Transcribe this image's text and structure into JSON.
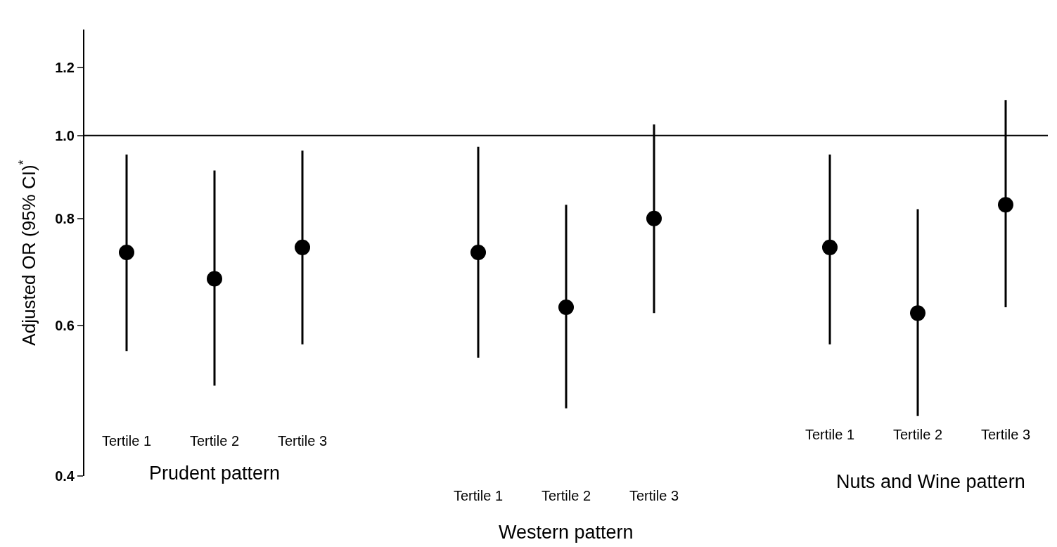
{
  "chart_data": {
    "type": "scatter",
    "ylabel": "Adjusted OR (95% CI)$^{*}$",
    "categories": [
      "Tertile 1",
      "Tertile 2",
      "Tertile 3",
      null,
      "Tertile 1",
      "Tertile 2",
      "Tertile 3",
      null,
      "Tertile 1",
      "Tertile 2",
      "Tertile 3"
    ],
    "series": [
      {
        "color": "#000000",
        "values": [
          0.73,
          0.68,
          0.74,
          null,
          0.73,
          0.63,
          0.8,
          null,
          0.74,
          0.62,
          0.83
        ],
        "errors": [
          [
            0.56,
            0.95
          ],
          [
            0.51,
            0.91
          ],
          [
            0.57,
            0.96
          ],
          null,
          [
            0.55,
            0.97
          ],
          [
            0.48,
            0.83
          ],
          [
            0.62,
            1.03
          ],
          null,
          [
            0.57,
            0.95
          ],
          [
            0.47,
            0.82
          ],
          [
            0.63,
            1.1
          ]
        ]
      }
    ],
    "annotations": [
      "Prudent pattern",
      "Western pattern",
      "Nuts and Wine pattern"
    ],
    "log": "y",
    "ylim": [
      0.4,
      1.33
    ],
    "yticks": [
      {
        "value": 0.4,
        "label": "0.4"
      },
      {
        "value": 0.6,
        "label": "0.6"
      },
      {
        "value": 0.8,
        "label": "0.8"
      },
      {
        "value": 1.0,
        "label": "1.0"
      },
      {
        "value": 1.2,
        "label": "1.2"
      }
    ],
    "ref_lines": [
      {
        "axis": "y",
        "value": 1.0,
        "color": "#000000"
      }
    ],
    "marker": "circle"
  }
}
